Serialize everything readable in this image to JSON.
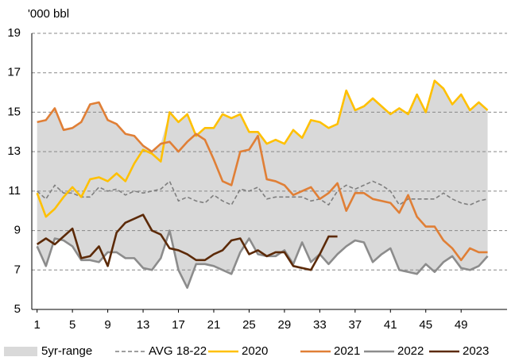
{
  "chart_data": {
    "type": "line",
    "y_label": "'000 bbl",
    "x": [
      1,
      2,
      3,
      4,
      5,
      6,
      7,
      8,
      9,
      10,
      11,
      12,
      13,
      14,
      15,
      16,
      17,
      18,
      19,
      20,
      21,
      22,
      23,
      24,
      25,
      26,
      27,
      28,
      29,
      30,
      31,
      32,
      33,
      34,
      35,
      36,
      37,
      38,
      39,
      40,
      41,
      42,
      43,
      44,
      45,
      46,
      47,
      48,
      49,
      50,
      51,
      52
    ],
    "xlim": [
      0.4,
      54.2
    ],
    "xticks": [
      1,
      5,
      9,
      13,
      17,
      21,
      25,
      29,
      33,
      37,
      41,
      45,
      49
    ],
    "ylim": [
      5,
      19
    ],
    "yticks": [
      5,
      7,
      9,
      11,
      13,
      15,
      17,
      19
    ],
    "grid": true,
    "legend": "bottom",
    "series": [
      {
        "name": "5yr-range",
        "kind": "range",
        "color": "#d9d9d9",
        "high": [
          14.5,
          14.6,
          15.2,
          14.1,
          14.2,
          14.5,
          15.4,
          15.5,
          14.6,
          14.4,
          13.9,
          13.8,
          13.3,
          13.0,
          13.4,
          15.0,
          14.5,
          14.9,
          13.9,
          14.2,
          14.2,
          14.9,
          14.7,
          14.9,
          14.0,
          14.0,
          13.4,
          13.6,
          13.4,
          14.1,
          13.7,
          14.6,
          14.5,
          14.2,
          14.4,
          16.1,
          15.1,
          15.3,
          15.7,
          15.3,
          14.9,
          15.2,
          14.9,
          15.9,
          15.0,
          16.6,
          16.2,
          15.4,
          15.9,
          15.1,
          15.5,
          15.1
        ],
        "low": [
          8.2,
          7.2,
          8.6,
          8.5,
          8.2,
          7.5,
          7.5,
          7.4,
          7.9,
          7.9,
          7.6,
          7.6,
          7.1,
          7.0,
          7.6,
          9.0,
          7.0,
          6.1,
          7.3,
          7.3,
          7.2,
          7.0,
          6.8,
          7.9,
          8.6,
          7.8,
          7.7,
          7.7,
          8.0,
          7.3,
          8.4,
          7.4,
          7.8,
          7.3,
          7.8,
          8.2,
          8.5,
          8.4,
          7.4,
          7.8,
          8.1,
          7.0,
          6.9,
          6.8,
          7.3,
          6.9,
          7.4,
          7.7,
          7.1,
          7.0,
          7.2,
          7.7
        ]
      },
      {
        "name": "AVG 18-22",
        "color": "#7f7f7f",
        "dashed": true,
        "values": [
          11.0,
          10.6,
          11.3,
          10.9,
          10.9,
          10.7,
          10.7,
          11.2,
          11.0,
          11.1,
          10.8,
          11.0,
          10.9,
          11.0,
          11.1,
          11.5,
          10.5,
          10.7,
          10.5,
          10.4,
          10.8,
          10.5,
          10.3,
          11.1,
          11.0,
          11.2,
          10.6,
          10.7,
          10.7,
          10.7,
          10.7,
          10.5,
          10.6,
          10.3,
          11.0,
          11.3,
          11.1,
          11.3,
          11.5,
          11.3,
          11.0,
          10.3,
          10.6,
          10.6,
          10.6,
          10.6,
          10.9,
          10.6,
          10.4,
          10.3,
          10.5,
          10.6
        ]
      },
      {
        "name": "2020",
        "color": "#ffc000",
        "values": [
          10.9,
          9.7,
          10.1,
          10.7,
          11.2,
          10.7,
          11.6,
          11.7,
          11.5,
          11.9,
          11.5,
          12.4,
          13.1,
          12.9,
          12.5,
          15.0,
          14.5,
          14.9,
          13.8,
          14.2,
          14.2,
          14.9,
          14.7,
          14.9,
          14.0,
          14.0,
          13.4,
          13.6,
          13.4,
          14.1,
          13.7,
          14.6,
          14.5,
          14.2,
          14.4,
          16.1,
          15.1,
          15.3,
          15.7,
          15.3,
          14.9,
          15.2,
          14.9,
          15.9,
          15.0,
          16.6,
          16.2,
          15.4,
          15.9,
          15.1,
          15.5,
          15.1
        ]
      },
      {
        "name": "2021",
        "color": "#e07f36",
        "values": [
          14.5,
          14.6,
          15.2,
          14.1,
          14.2,
          14.5,
          15.4,
          15.5,
          14.6,
          14.4,
          13.9,
          13.8,
          13.3,
          13.0,
          13.4,
          13.5,
          13.0,
          13.5,
          13.9,
          13.6,
          12.6,
          11.5,
          11.3,
          13.0,
          13.1,
          13.8,
          11.6,
          11.5,
          11.3,
          10.8,
          11.0,
          11.2,
          10.6,
          10.9,
          11.4,
          10.0,
          10.9,
          10.9,
          10.6,
          10.5,
          10.4,
          9.9,
          10.8,
          9.7,
          9.2,
          9.2,
          8.5,
          8.1,
          7.5,
          8.1,
          7.9,
          7.9
        ]
      },
      {
        "name": "2022",
        "color": "#8c8c8c",
        "values": [
          8.2,
          7.2,
          8.6,
          8.5,
          8.2,
          7.5,
          7.5,
          7.4,
          7.9,
          7.9,
          7.6,
          7.6,
          7.1,
          7.0,
          7.6,
          9.0,
          7.0,
          6.1,
          7.3,
          7.3,
          7.2,
          7.0,
          6.8,
          7.9,
          8.6,
          7.8,
          7.7,
          7.7,
          8.0,
          7.3,
          8.4,
          7.4,
          7.8,
          7.3,
          7.8,
          8.2,
          8.5,
          8.4,
          7.4,
          7.8,
          8.1,
          7.0,
          6.9,
          6.8,
          7.3,
          6.9,
          7.4,
          7.7,
          7.1,
          7.0,
          7.2,
          7.7
        ]
      },
      {
        "name": "2023",
        "color": "#5c2a08",
        "values": [
          8.3,
          8.6,
          8.3,
          8.7,
          9.1,
          7.6,
          7.7,
          8.2,
          7.2,
          8.9,
          9.4,
          9.6,
          9.8,
          9.0,
          8.8,
          8.1,
          8.0,
          7.8,
          7.5,
          7.5,
          7.8,
          8.0,
          8.5,
          8.6,
          7.8,
          8.0,
          7.7,
          7.9,
          7.9,
          7.2,
          7.1,
          7.0,
          7.8,
          8.7,
          8.7,
          null,
          null,
          null,
          null,
          null,
          null,
          null,
          null,
          null,
          null,
          null,
          null,
          null,
          null,
          null,
          null,
          null
        ]
      }
    ]
  }
}
